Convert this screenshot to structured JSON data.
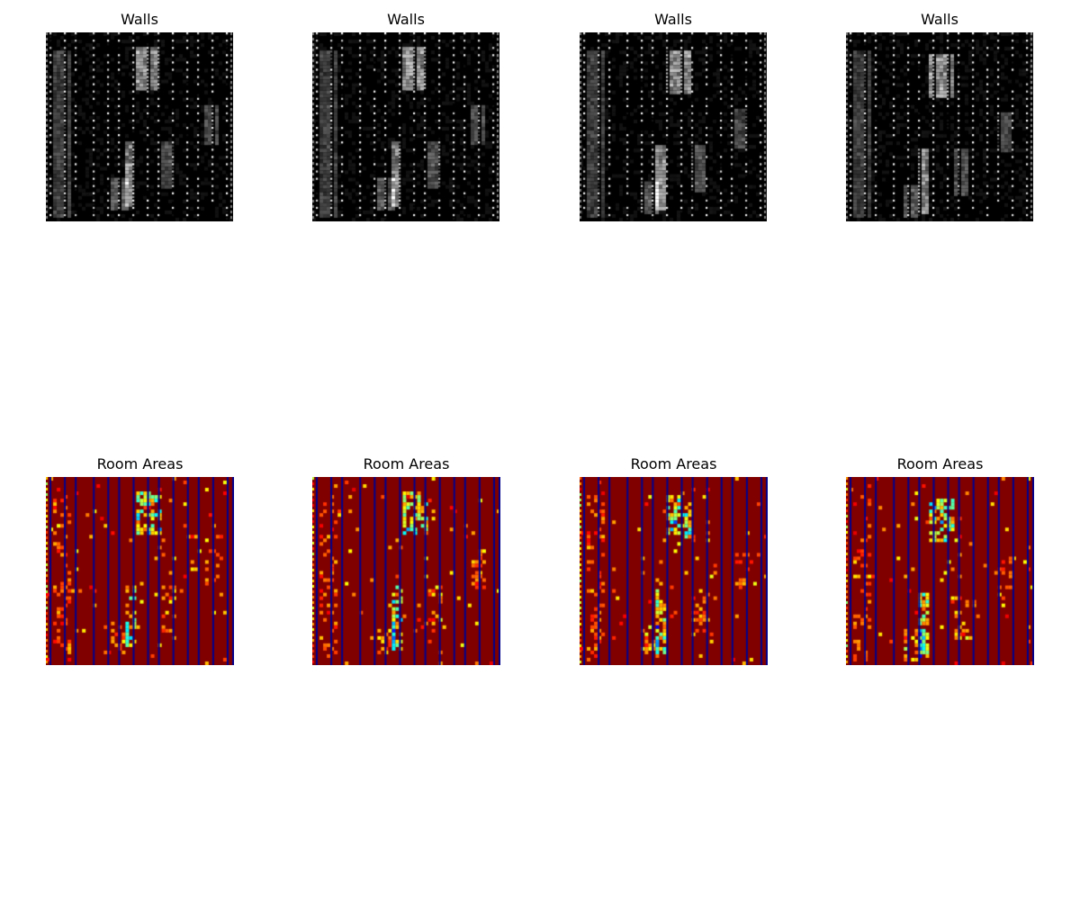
{
  "chart_data": [
    {
      "type": "heatmap",
      "title": "Walls",
      "colormap": "gray",
      "variant": 0
    },
    {
      "type": "heatmap",
      "title": "Walls",
      "colormap": "gray",
      "variant": 1
    },
    {
      "type": "heatmap",
      "title": "Walls",
      "colormap": "gray",
      "variant": 2
    },
    {
      "type": "heatmap",
      "title": "Walls",
      "colormap": "gray",
      "variant": 3
    },
    {
      "type": "heatmap",
      "title": "Room Areas",
      "colormap": "jet",
      "variant": 0
    },
    {
      "type": "heatmap",
      "title": "Room Areas",
      "colormap": "jet",
      "variant": 1
    },
    {
      "type": "heatmap",
      "title": "Room Areas",
      "colormap": "jet",
      "variant": 2
    },
    {
      "type": "heatmap",
      "title": "Room Areas",
      "colormap": "jet",
      "variant": 3
    }
  ],
  "colors": {
    "background": "#ffffff",
    "walls_bg": "#000000",
    "rooms_bg": "#800000",
    "rooms_line": "#00008f"
  }
}
